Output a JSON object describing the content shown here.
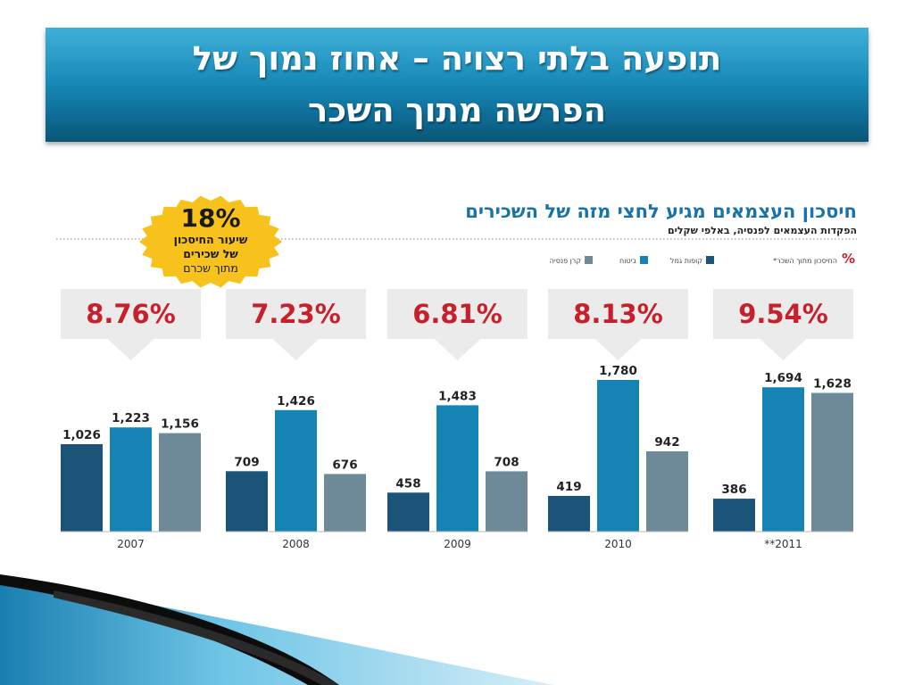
{
  "slide": {
    "title": "תופעה בלתי רצויה – אחוז נמוך של\nהפרשה מתוך השכר"
  },
  "chart_data": {
    "type": "bar",
    "title": "חיסכון העצמאים מגיע לחצי מזה של השכירים",
    "subtitle": "הפקדות העצמאים לפנסיה, באלפי שקלים",
    "categories": [
      "2007",
      "2008",
      "2009",
      "2010",
      "**2011"
    ],
    "series": [
      {
        "name": "קופות גמל",
        "color": "#1b5478",
        "values": [
          1026,
          709,
          458,
          419,
          386
        ],
        "labels": [
          "1,026",
          "709",
          "458",
          "419",
          "386"
        ]
      },
      {
        "name": "ביטוח",
        "color": "#1583b4",
        "values": [
          1223,
          1426,
          1483,
          1780,
          1694
        ],
        "labels": [
          "1,223",
          "1,426",
          "1,483",
          "1,780",
          "1,694"
        ]
      },
      {
        "name": "קרן פנסיה",
        "color": "#6e8a99",
        "values": [
          1156,
          676,
          708,
          942,
          1628
        ],
        "labels": [
          "1,156",
          "676",
          "708",
          "942",
          "1,628"
        ]
      }
    ],
    "percent_legend": "החיסכון מתוך השכר*",
    "percent_symbol": "%",
    "savings_percent": [
      "8.76%",
      "7.23%",
      "6.81%",
      "8.13%",
      "9.54%"
    ],
    "badge": {
      "value": "18%",
      "line1": "שיעור החיסכון",
      "line2": "של שכירים",
      "line3": "מתוך שכרם"
    },
    "ylim": [
      0,
      2000
    ],
    "legend": "top-right",
    "colors": {
      "title": "#1a72a8",
      "percent": "#c8202b",
      "badge": "#f6c21b",
      "callout": "#ebebeb"
    }
  }
}
